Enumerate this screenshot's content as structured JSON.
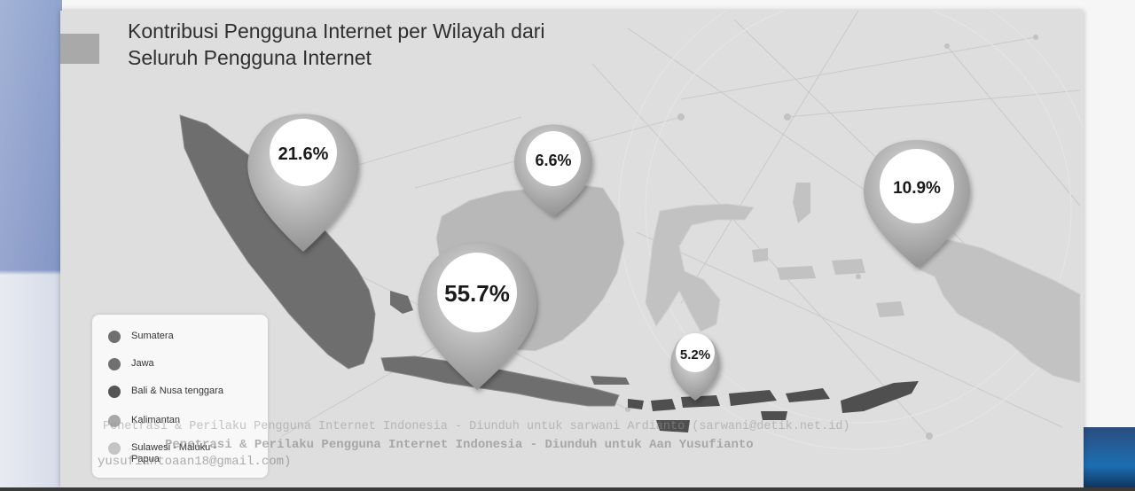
{
  "title": {
    "line1": "Kontribusi Pengguna Internet per Wilayah dari",
    "line2": "Seluruh Pengguna Internet"
  },
  "chart_data": {
    "type": "pie",
    "title": "Kontribusi Pengguna Internet per Wilayah dari Seluruh Pengguna Internet",
    "categories": [
      "Sumatera",
      "Jawa",
      "Bali & Nusa tenggara",
      "Kalimantan",
      "Sulawesi - Maluku - Papua"
    ],
    "values": [
      21.6,
      55.7,
      5.2,
      6.6,
      10.9
    ],
    "labels": [
      "21.6%",
      "55.7%",
      "5.2%",
      "6.6%",
      "10.9%"
    ],
    "unit": "%",
    "legend_position": "bottom-left"
  },
  "legend": {
    "items": [
      {
        "label": "Sumatera",
        "color": "#707070"
      },
      {
        "label": "Jawa",
        "color": "#707070"
      },
      {
        "label": "Bali & Nusa tenggara",
        "color": "#555555"
      },
      {
        "label": "Kalimantan",
        "color": "#a8a8a8"
      },
      {
        "label": "Sulawesi - Maluku -\nPapua",
        "color": "#c4c4c4"
      }
    ]
  },
  "watermark": {
    "line1": "Penetrasi & Perilaku Pengguna Internet Indonesia - Diunduh untuk sarwani Ardianto (sarwani@detik.net.id)",
    "line2": "Penetrasi & Perilaku Pengguna Internet Indonesia - Diunduh untuk Aan Yusufianto",
    "line3": "yusufiantoaan18@gmail.com)"
  },
  "colors": {
    "land_dark": "#6e6e6e",
    "land_light": "#bdbdbd",
    "pin": "#9a9a9a"
  }
}
